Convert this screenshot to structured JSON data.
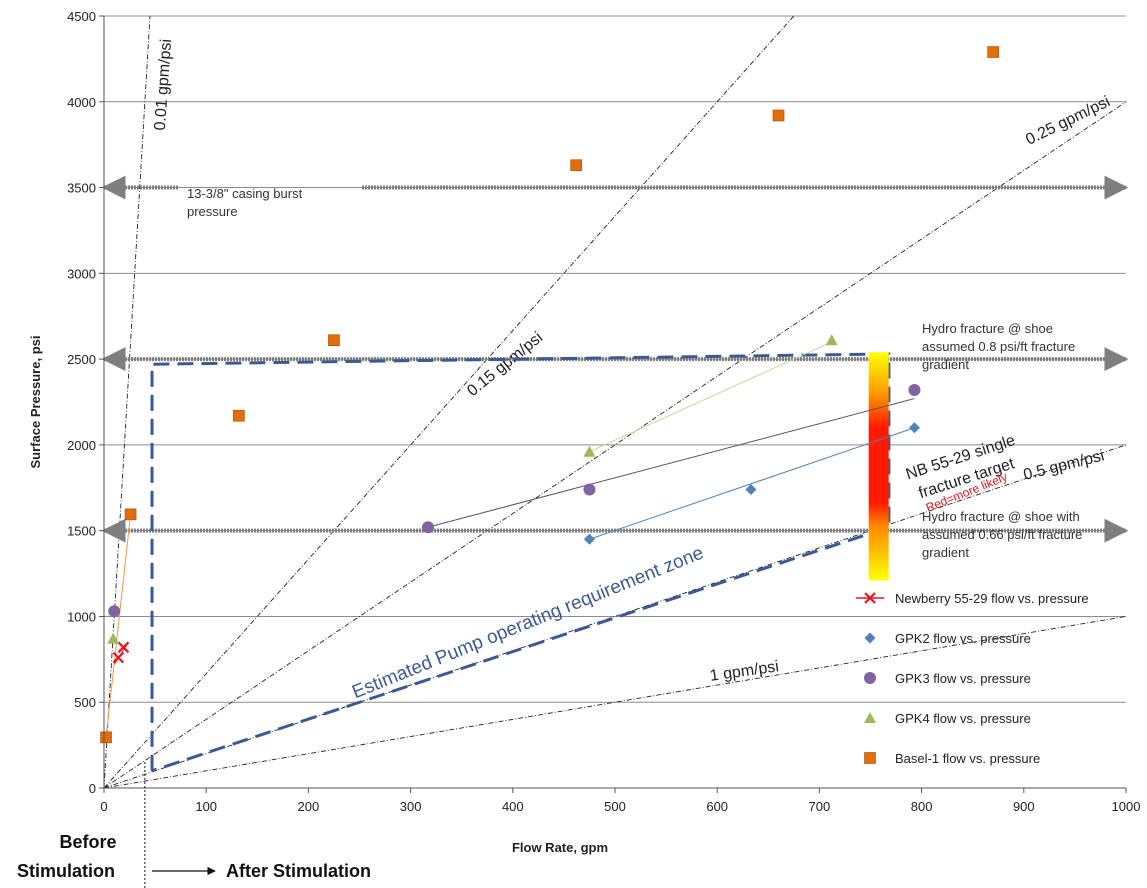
{
  "chart_data": {
    "type": "scatter",
    "xlabel": "Flow Rate, gpm",
    "ylabel": "Surface Pressure, psi",
    "xlim": [
      0,
      1000
    ],
    "ylim": [
      0,
      4500
    ],
    "x_ticks": [
      "0",
      "100",
      "200",
      "300",
      "400",
      "500",
      "600",
      "700",
      "800",
      "900",
      "1000"
    ],
    "y_ticks": [
      "0",
      "500",
      "1000",
      "1500",
      "2000",
      "2500",
      "3000",
      "3500",
      "4000",
      "4500"
    ],
    "grid": "horizontal",
    "legend_position": "right",
    "series": [
      {
        "name": "Newberry 55-29 flow vs. pressure",
        "marker": "x",
        "color": "#e8141c",
        "line_color": "#e8141c",
        "points": [
          [
            14,
            760
          ],
          [
            19,
            820
          ]
        ],
        "fit": [
          [
            10,
            720
          ],
          [
            24,
            850
          ]
        ]
      },
      {
        "name": "GPK2 flow vs. pressure",
        "marker": "diamond",
        "color": "#4f81bd",
        "line_color": "#4f81bd",
        "points": [
          [
            475,
            1450
          ],
          [
            633,
            1740
          ],
          [
            793,
            2100
          ]
        ],
        "fit": [
          [
            475,
            1450
          ],
          [
            793,
            2100
          ]
        ]
      },
      {
        "name": "GPK3 flow vs. pressure",
        "marker": "circle",
        "color": "#8064a2",
        "line_color": "#555555",
        "points": [
          [
            10,
            1030
          ],
          [
            317,
            1520
          ],
          [
            475,
            1740
          ],
          [
            793,
            2320
          ]
        ],
        "fit": [
          [
            317,
            1520
          ],
          [
            793,
            2270
          ]
        ]
      },
      {
        "name": "GPK4 flow vs. pressure",
        "marker": "triangle",
        "color": "#9bbb59",
        "line_color": "#c4d79b",
        "points": [
          [
            9,
            870
          ],
          [
            475,
            1960
          ],
          [
            712,
            2610
          ]
        ],
        "fit": [
          [
            475,
            1960
          ],
          [
            712,
            2600
          ]
        ]
      },
      {
        "name": "Basel-1 flow vs. pressure",
        "marker": "square",
        "color": "#e46c0a",
        "line_color": "#f79646",
        "points": [
          [
            2,
            295
          ],
          [
            26,
            1595
          ],
          [
            132,
            2170
          ],
          [
            225,
            2610
          ],
          [
            462,
            3630
          ],
          [
            660,
            3920
          ],
          [
            870,
            4290
          ]
        ],
        "fit": [
          [
            2,
            295
          ],
          [
            26,
            1595
          ]
        ]
      }
    ],
    "reference_lines": [
      {
        "label": "0.01 gpm/psi",
        "slope_gpm_per_psi": 0.01
      },
      {
        "label": "0.15 gpm/psi",
        "slope_gpm_per_psi": 0.15
      },
      {
        "label": "0.25 gpm/psi",
        "slope_gpm_per_psi": 0.25
      },
      {
        "label": "0.5 gpm/psi",
        "slope_gpm_per_psi": 0.5
      },
      {
        "label": "1 gpm/psi",
        "slope_gpm_per_psi": 1.0
      }
    ],
    "pressure_limits": [
      {
        "y": 3500,
        "label": [
          "13-3/8\" casing burst",
          "pressure"
        ]
      },
      {
        "y": 2500,
        "label": [
          "Hydro fracture @ shoe",
          "assumed 0.8 psi/ft fracture",
          "gradient"
        ]
      },
      {
        "y": 1500,
        "label": [
          "Hydro fracture @ shoe with",
          "assumed 0.66 psi/ft fracture",
          "gradient"
        ]
      }
    ],
    "target_bar": {
      "x": 758,
      "y_range": [
        1210,
        2540
      ],
      "label": [
        "NB 55-29 single",
        "fracture target"
      ],
      "note": "Red=more likely"
    },
    "zone": {
      "label": "Estimated Pump operating requirement zone",
      "polygon": [
        [
          47,
          100
        ],
        [
          47,
          2470
        ],
        [
          768,
          2530
        ],
        [
          768,
          1520
        ],
        [
          47,
          100
        ]
      ]
    },
    "stimulation_divider_x": 40,
    "bottom_labels": {
      "before_1": "Before",
      "before_2": "Stimulation",
      "after": "After Stimulation"
    }
  }
}
